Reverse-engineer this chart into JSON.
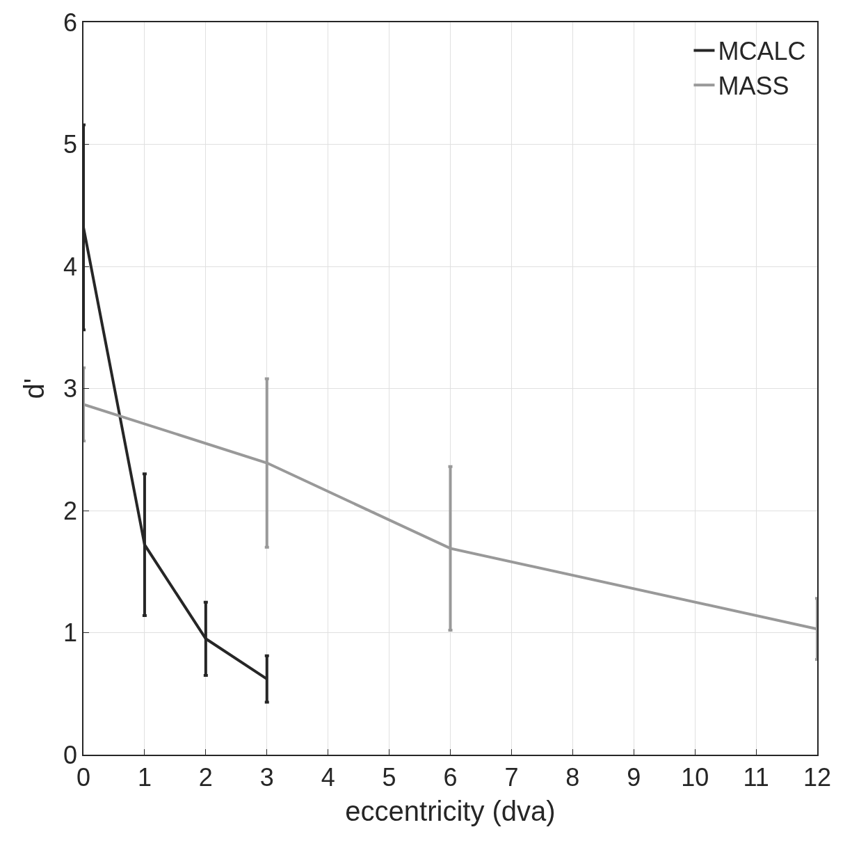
{
  "chart_data": {
    "type": "line",
    "xlabel": "eccentricity (dva)",
    "ylabel": "d'",
    "xlim": [
      0,
      12
    ],
    "ylim": [
      0,
      6
    ],
    "xticks": [
      0,
      1,
      2,
      3,
      4,
      5,
      6,
      7,
      8,
      9,
      10,
      11,
      12
    ],
    "yticks": [
      0,
      1,
      2,
      3,
      4,
      5,
      6
    ],
    "grid": true,
    "legend": "top right",
    "marker": "none",
    "line_style": "solid",
    "series": [
      {
        "name": "MCALC",
        "color": "#262626",
        "x": [
          0,
          1,
          2,
          3
        ],
        "values": [
          4.32,
          1.72,
          0.95,
          0.62
        ],
        "errors": [
          0.84,
          0.58,
          0.3,
          0.19
        ]
      },
      {
        "name": "MASS",
        "color": "#999999",
        "x": [
          0,
          3,
          6,
          12
        ],
        "values": [
          2.87,
          2.39,
          1.69,
          1.03
        ],
        "errors": [
          0.3,
          0.69,
          0.67,
          0.25
        ]
      }
    ]
  }
}
